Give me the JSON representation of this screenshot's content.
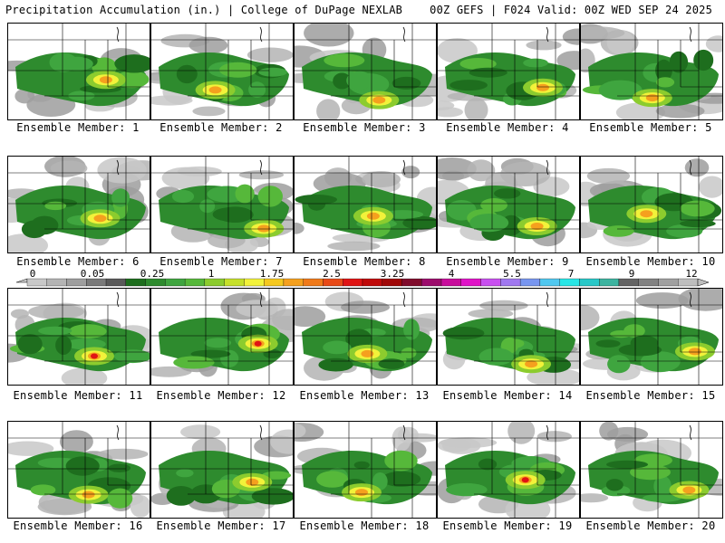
{
  "header": {
    "left": "Precipitation Accumulation (in.) | College of DuPage NEXLAB",
    "right": "00Z GEFS | F024 Valid: 00Z WED SEP 24 2025"
  },
  "map_type": "precipitation accumulation ensemble panels",
  "panels": [
    {
      "label": "Ensemble Member: 1"
    },
    {
      "label": "Ensemble Member: 2"
    },
    {
      "label": "Ensemble Member: 3"
    },
    {
      "label": "Ensemble Member: 4"
    },
    {
      "label": "Ensemble Member: 5"
    },
    {
      "label": "Ensemble Member: 6"
    },
    {
      "label": "Ensemble Member: 7"
    },
    {
      "label": "Ensemble Member: 8"
    },
    {
      "label": "Ensemble Member: 9"
    },
    {
      "label": "Ensemble Member: 10"
    },
    {
      "label": "Ensemble Member: 11"
    },
    {
      "label": "Ensemble Member: 12"
    },
    {
      "label": "Ensemble Member: 13"
    },
    {
      "label": "Ensemble Member: 14"
    },
    {
      "label": "Ensemble Member: 15"
    },
    {
      "label": "Ensemble Member: 16"
    },
    {
      "label": "Ensemble Member: 17"
    },
    {
      "label": "Ensemble Member: 18"
    },
    {
      "label": "Ensemble Member: 19"
    },
    {
      "label": "Ensemble Member: 20"
    }
  ],
  "legend": {
    "tick_labels": [
      "0",
      "0.05",
      "0.25",
      "1",
      "1.75",
      "2.5",
      "3.25",
      "4",
      "5.5",
      "7",
      "9",
      "12"
    ],
    "colors": [
      "#c8c8c8",
      "#b4b4b4",
      "#9e9e9e",
      "#7a7a7a",
      "#5a5a5a",
      "#1e6e1e",
      "#2e8b2e",
      "#3fa53f",
      "#56b83a",
      "#8ccc2e",
      "#c6e02a",
      "#f2f23a",
      "#f5c81e",
      "#f5a01e",
      "#f07a1a",
      "#e84a18",
      "#e01414",
      "#c00a0a",
      "#a00808",
      "#800c2c",
      "#9c0c6c",
      "#c80c9c",
      "#e014c8",
      "#c850f0",
      "#a078f0",
      "#7896f0",
      "#50c8f0",
      "#28e6e6",
      "#28c8c8",
      "#3cb4a0",
      "#646464",
      "#828282",
      "#a0a0a0",
      "#bebebe"
    ]
  }
}
